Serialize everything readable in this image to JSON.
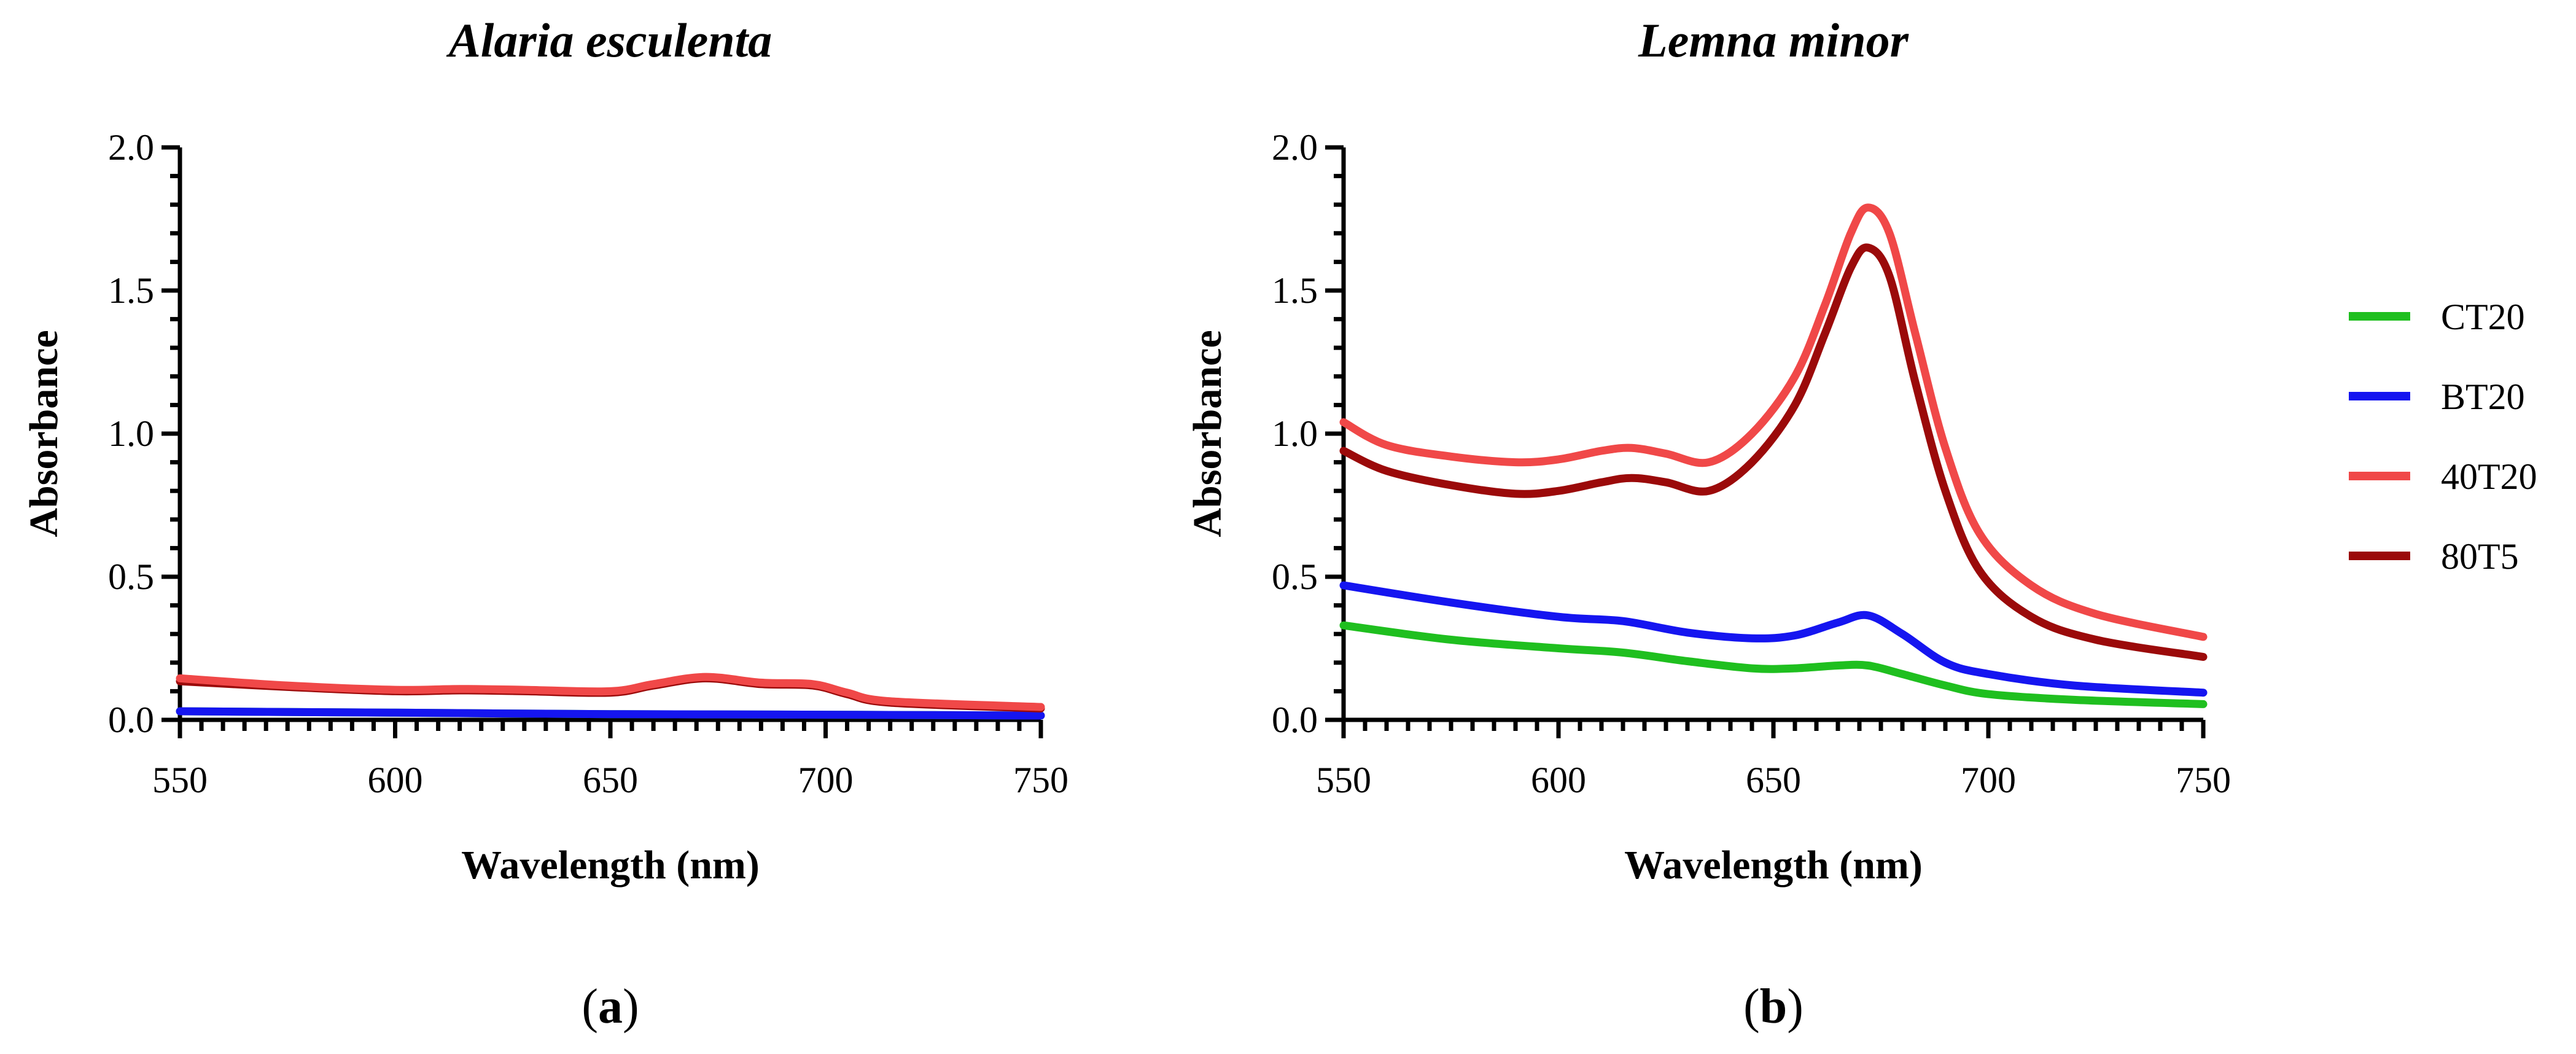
{
  "chart_data": [
    {
      "type": "line",
      "panel": "(a)",
      "title": "Alaria esculenta",
      "xlabel": "Wavelength (nm)",
      "ylabel": "Absorbance",
      "xlim": [
        550,
        750
      ],
      "ylim": [
        0,
        2
      ],
      "xticks": [
        "550",
        "600",
        "650",
        "700",
        "750"
      ],
      "yticks": [
        "0.0",
        "0.5",
        "1.0",
        "1.5",
        "2.0"
      ],
      "series": [
        {
          "name": "CT20",
          "color": "#1fbf1f",
          "x": [
            550,
            600,
            650,
            700,
            750
          ],
          "y": [
            0.03,
            0.025,
            0.02,
            0.018,
            0.015
          ]
        },
        {
          "name": "BT20",
          "color": "#1515f0",
          "x": [
            550,
            600,
            650,
            700,
            750
          ],
          "y": [
            0.03,
            0.025,
            0.02,
            0.018,
            0.015
          ]
        },
        {
          "name": "80T5",
          "color": "#9b0a0a",
          "x": [
            550,
            575,
            600,
            615,
            630,
            650,
            660,
            672,
            685,
            697,
            705,
            715,
            750
          ],
          "y": [
            0.135,
            0.115,
            0.1,
            0.103,
            0.1,
            0.095,
            0.12,
            0.145,
            0.125,
            0.12,
            0.09,
            0.06,
            0.04
          ]
        },
        {
          "name": "40T20",
          "color": "#f04848",
          "x": [
            550,
            575,
            600,
            615,
            630,
            650,
            660,
            672,
            685,
            697,
            705,
            715,
            750
          ],
          "y": [
            0.145,
            0.12,
            0.105,
            0.108,
            0.105,
            0.1,
            0.125,
            0.15,
            0.13,
            0.125,
            0.095,
            0.065,
            0.045
          ]
        }
      ]
    },
    {
      "type": "line",
      "panel": "(b)",
      "title": "Lemna minor",
      "xlabel": "Wavelength (nm)",
      "ylabel": "Absorbance",
      "xlim": [
        550,
        750
      ],
      "ylim": [
        0,
        2
      ],
      "xticks": [
        "550",
        "600",
        "650",
        "700",
        "750"
      ],
      "yticks": [
        "0.0",
        "0.5",
        "1.0",
        "1.5",
        "2.0"
      ],
      "series": [
        {
          "name": "CT20",
          "color": "#1fbf1f",
          "x": [
            550,
            575,
            600,
            615,
            630,
            645,
            655,
            665,
            672,
            680,
            690,
            700,
            720,
            750
          ],
          "y": [
            0.33,
            0.28,
            0.25,
            0.235,
            0.205,
            0.18,
            0.18,
            0.19,
            0.19,
            0.16,
            0.12,
            0.09,
            0.07,
            0.055
          ]
        },
        {
          "name": "BT20",
          "color": "#1515f0",
          "x": [
            550,
            575,
            600,
            615,
            630,
            645,
            655,
            665,
            672,
            680,
            690,
            700,
            720,
            750
          ],
          "y": [
            0.47,
            0.41,
            0.36,
            0.345,
            0.305,
            0.285,
            0.295,
            0.34,
            0.365,
            0.3,
            0.2,
            0.16,
            0.12,
            0.095
          ]
        },
        {
          "name": "40T20",
          "color": "#f04848",
          "x": [
            550,
            560,
            575,
            590,
            600,
            610,
            617,
            625,
            635,
            645,
            655,
            662,
            668,
            672,
            677,
            683,
            690,
            698,
            710,
            725,
            750
          ],
          "y": [
            1.04,
            0.96,
            0.92,
            0.9,
            0.91,
            0.94,
            0.95,
            0.93,
            0.9,
            1.0,
            1.2,
            1.45,
            1.7,
            1.79,
            1.7,
            1.35,
            0.95,
            0.65,
            0.47,
            0.37,
            0.29
          ]
        },
        {
          "name": "80T5",
          "color": "#9b0a0a",
          "x": [
            550,
            560,
            575,
            590,
            600,
            610,
            617,
            625,
            635,
            645,
            655,
            662,
            668,
            672,
            677,
            683,
            690,
            698,
            710,
            725,
            750
          ],
          "y": [
            0.94,
            0.87,
            0.82,
            0.79,
            0.8,
            0.83,
            0.845,
            0.83,
            0.8,
            0.9,
            1.1,
            1.35,
            1.58,
            1.65,
            1.55,
            1.18,
            0.8,
            0.52,
            0.36,
            0.28,
            0.22
          ]
        }
      ]
    }
  ],
  "legend": [
    {
      "name": "CT20",
      "color": "#1fbf1f"
    },
    {
      "name": "BT20",
      "color": "#1515f0"
    },
    {
      "name": "40T20",
      "color": "#f04848"
    },
    {
      "name": "80T5",
      "color": "#9b0a0a"
    }
  ],
  "panel_labels": {
    "a_paren_open": "(",
    "a_letter": "a",
    "a_paren_close": ")",
    "b_paren_open": "(",
    "b_letter": "b",
    "b_paren_close": ")"
  }
}
